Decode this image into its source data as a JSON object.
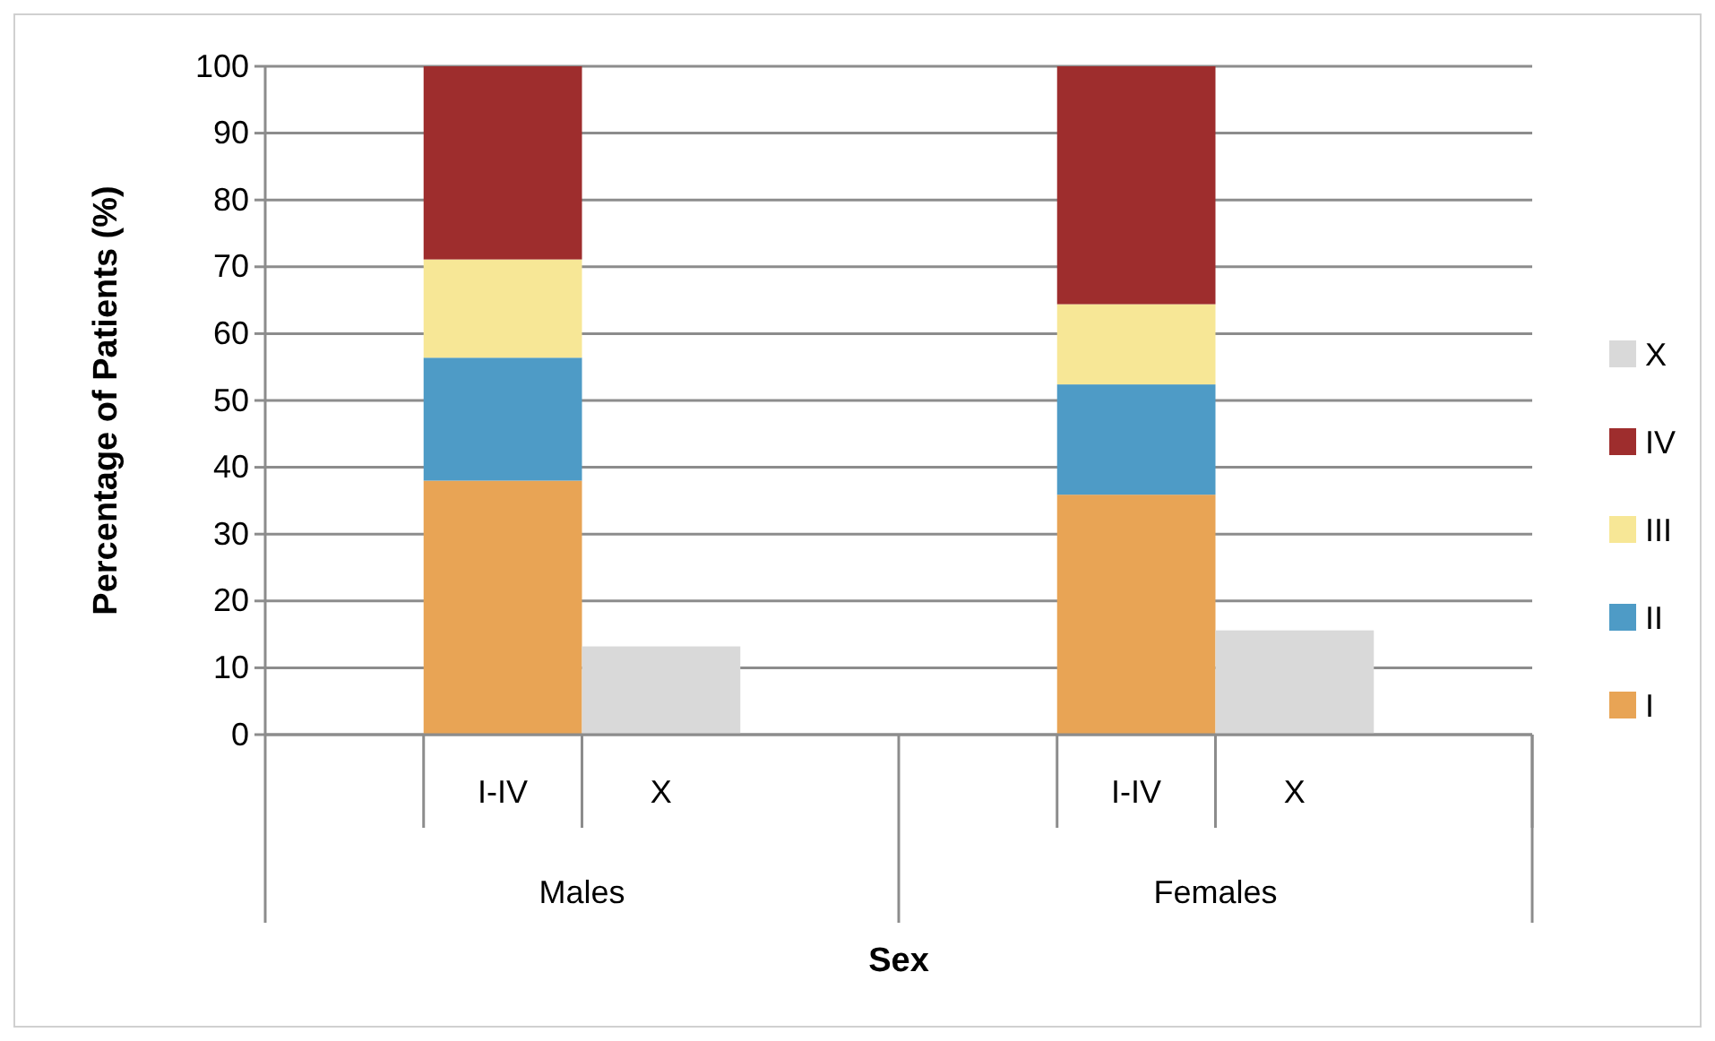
{
  "chart_data": {
    "type": "bar",
    "stacked": true,
    "xlabel": "Sex",
    "ylabel": "Percentage of Patients (%)",
    "categories": [
      "I-IV",
      "X",
      "I-IV",
      "X"
    ],
    "annotations": [
      "Males",
      "Females"
    ],
    "series": [
      {
        "name": "I",
        "color": "#e8a455",
        "values": [
          38.0,
          null,
          35.9,
          null
        ]
      },
      {
        "name": "II",
        "color": "#4e9bc6",
        "values": [
          18.4,
          null,
          16.5,
          null
        ]
      },
      {
        "name": "III",
        "color": "#f7e796",
        "values": [
          14.7,
          null,
          12.0,
          null
        ]
      },
      {
        "name": "IV",
        "color": "#9e2d2d",
        "values": [
          28.9,
          null,
          35.6,
          null
        ]
      },
      {
        "name": "X",
        "color": "#d9d9d9",
        "values": [
          null,
          13.2,
          null,
          15.6
        ]
      }
    ],
    "ylim": [
      0,
      100
    ],
    "yticks": [
      0,
      10,
      20,
      30,
      40,
      50,
      60,
      70,
      80,
      90,
      100
    ],
    "grid": "y",
    "legend": "right"
  }
}
